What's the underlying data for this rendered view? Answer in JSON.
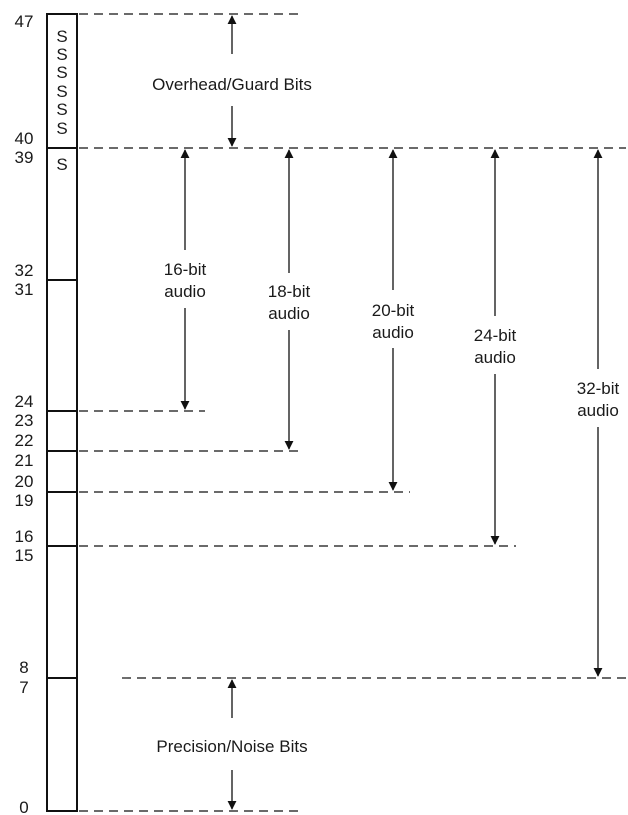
{
  "bit_numbers": {
    "b47": "47",
    "b40": "40",
    "b39": "39",
    "b32": "32",
    "b31": "31",
    "b24": "24",
    "b23": "23",
    "b22": "22",
    "b21": "21",
    "b20": "20",
    "b19": "19",
    "b16": "16",
    "b15": "15",
    "b8": "8",
    "b7": "7",
    "b0": "0"
  },
  "sign_bits": [
    "S",
    "S",
    "S",
    "S",
    "S",
    "S"
  ],
  "overhead": {
    "label": "Overhead/Guard Bits"
  },
  "precision": {
    "label": "Precision/Noise Bits"
  },
  "audio_ranges": [
    {
      "line1": "16-bit",
      "line2": "audio"
    },
    {
      "line1": "18-bit",
      "line2": "audio"
    },
    {
      "line1": "20-bit",
      "line2": "audio"
    },
    {
      "line1": "24-bit",
      "line2": "audio"
    },
    {
      "line1": "32-bit",
      "line2": "audio"
    }
  ]
}
